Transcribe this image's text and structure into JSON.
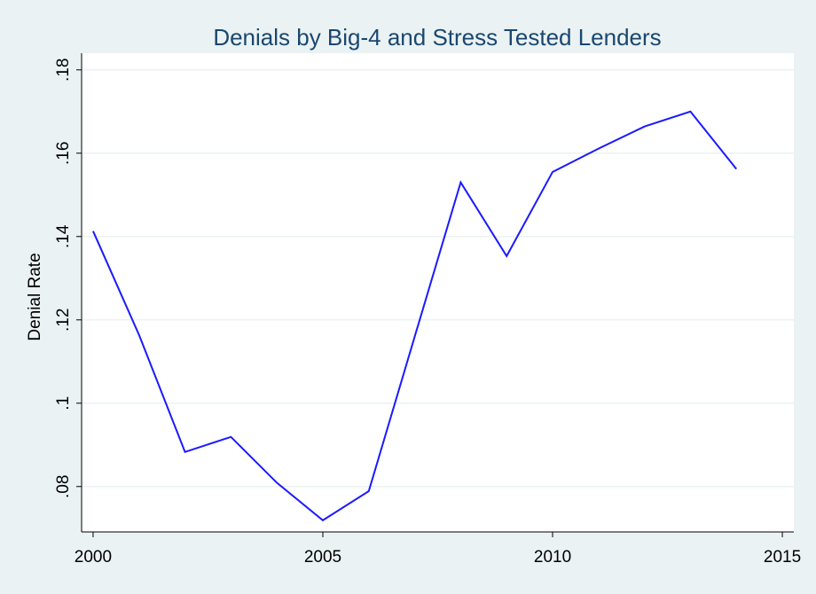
{
  "chart_data": {
    "type": "line",
    "title": "Denials by Big-4 and Stress Tested Lenders",
    "y_label": "Denial Rate",
    "x": [
      2000,
      2001,
      2002,
      2003,
      2004,
      2005,
      2006,
      2007,
      2008,
      2009,
      2010,
      2011,
      2012,
      2013,
      2014
    ],
    "series": [
      {
        "name": "Denial Rate",
        "color": "#1a1aff",
        "values": [
          0.1413,
          0.1164,
          0.0883,
          0.0919,
          0.0809,
          0.0719,
          0.0789,
          0.116,
          0.153,
          0.1353,
          0.1555,
          0.1611,
          0.1664,
          0.17,
          0.1562
        ]
      }
    ],
    "xlim": [
      1999.75,
      2015.25
    ],
    "xticks": [
      2000,
      2005,
      2010,
      2015
    ],
    "ylim": [
      0.0691,
      0.184
    ],
    "yticks": [
      {
        "value": 0.08,
        "label": ".08"
      },
      {
        "value": 0.1,
        "label": ".1"
      },
      {
        "value": 0.12,
        "label": ".12"
      },
      {
        "value": 0.14,
        "label": ".14"
      },
      {
        "value": 0.16,
        "label": ".16"
      },
      {
        "value": 0.18,
        "label": ".18"
      }
    ],
    "grid": true
  }
}
